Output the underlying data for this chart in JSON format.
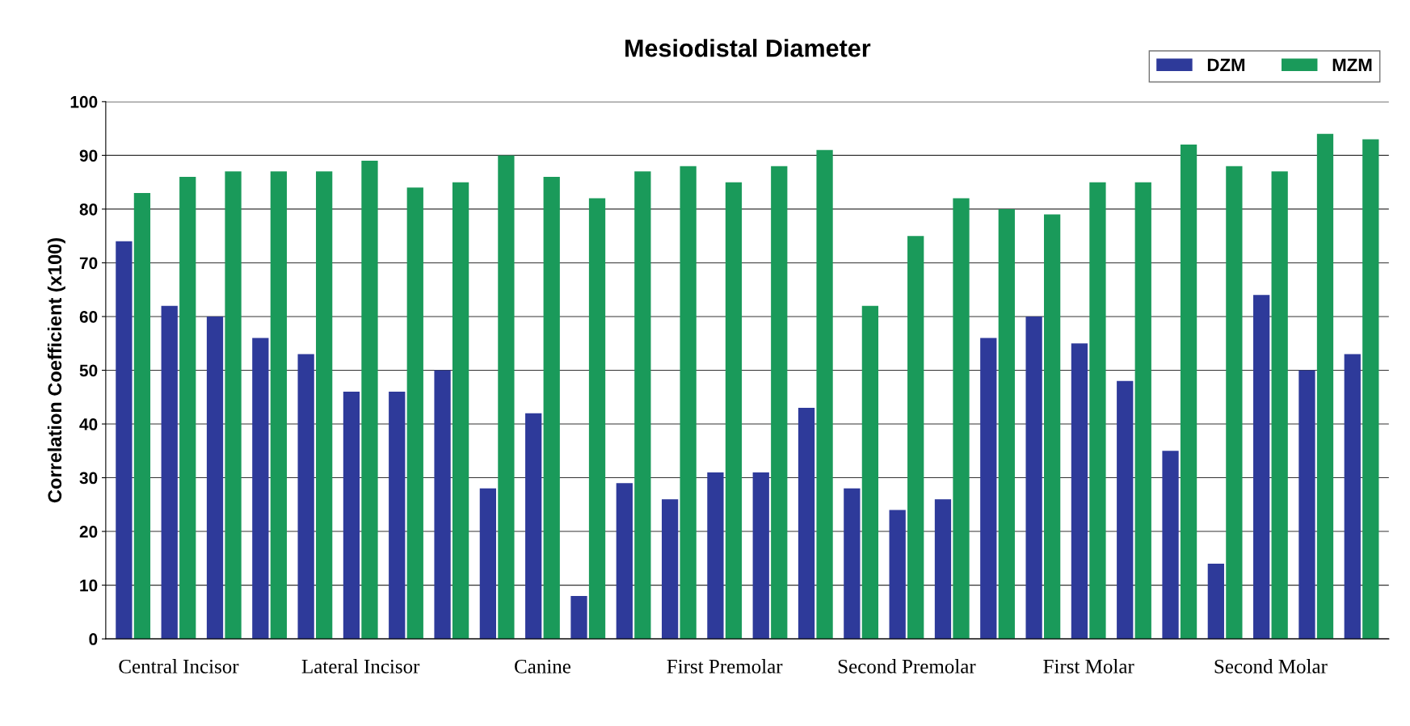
{
  "chart_data": {
    "type": "bar",
    "title": "Mesiodistal Diameter",
    "ylabel": "Correlation Coefficient (x100)",
    "categories": [
      null,
      "Central Incisor",
      null,
      null,
      null,
      "Lateral Incisor",
      null,
      null,
      null,
      "Canine",
      null,
      null,
      null,
      "First Premolar",
      null,
      null,
      null,
      "Second Premolar",
      null,
      null,
      null,
      "First Molar",
      null,
      null,
      null,
      "Second Molar",
      null,
      null
    ],
    "series": [
      {
        "name": "DZM",
        "color": "#2e3a9a",
        "values": [
          74,
          62,
          60,
          56,
          53,
          46,
          46,
          50,
          28,
          42,
          8,
          29,
          26,
          31,
          31,
          43,
          28,
          24,
          26,
          56,
          60,
          55,
          48,
          35,
          14,
          64,
          50,
          53
        ]
      },
      {
        "name": "MZM",
        "color": "#1a9a5a",
        "values": [
          83,
          86,
          87,
          87,
          87,
          89,
          84,
          85,
          90,
          86,
          82,
          87,
          88,
          85,
          88,
          91,
          62,
          75,
          82,
          80,
          79,
          85,
          85,
          92,
          88,
          87,
          94,
          93
        ]
      }
    ],
    "ylim": [
      0,
      100
    ],
    "yticks": [
      0,
      10,
      20,
      30,
      40,
      50,
      60,
      70,
      80,
      90,
      100
    ],
    "grid": "y",
    "legend": "top right"
  }
}
